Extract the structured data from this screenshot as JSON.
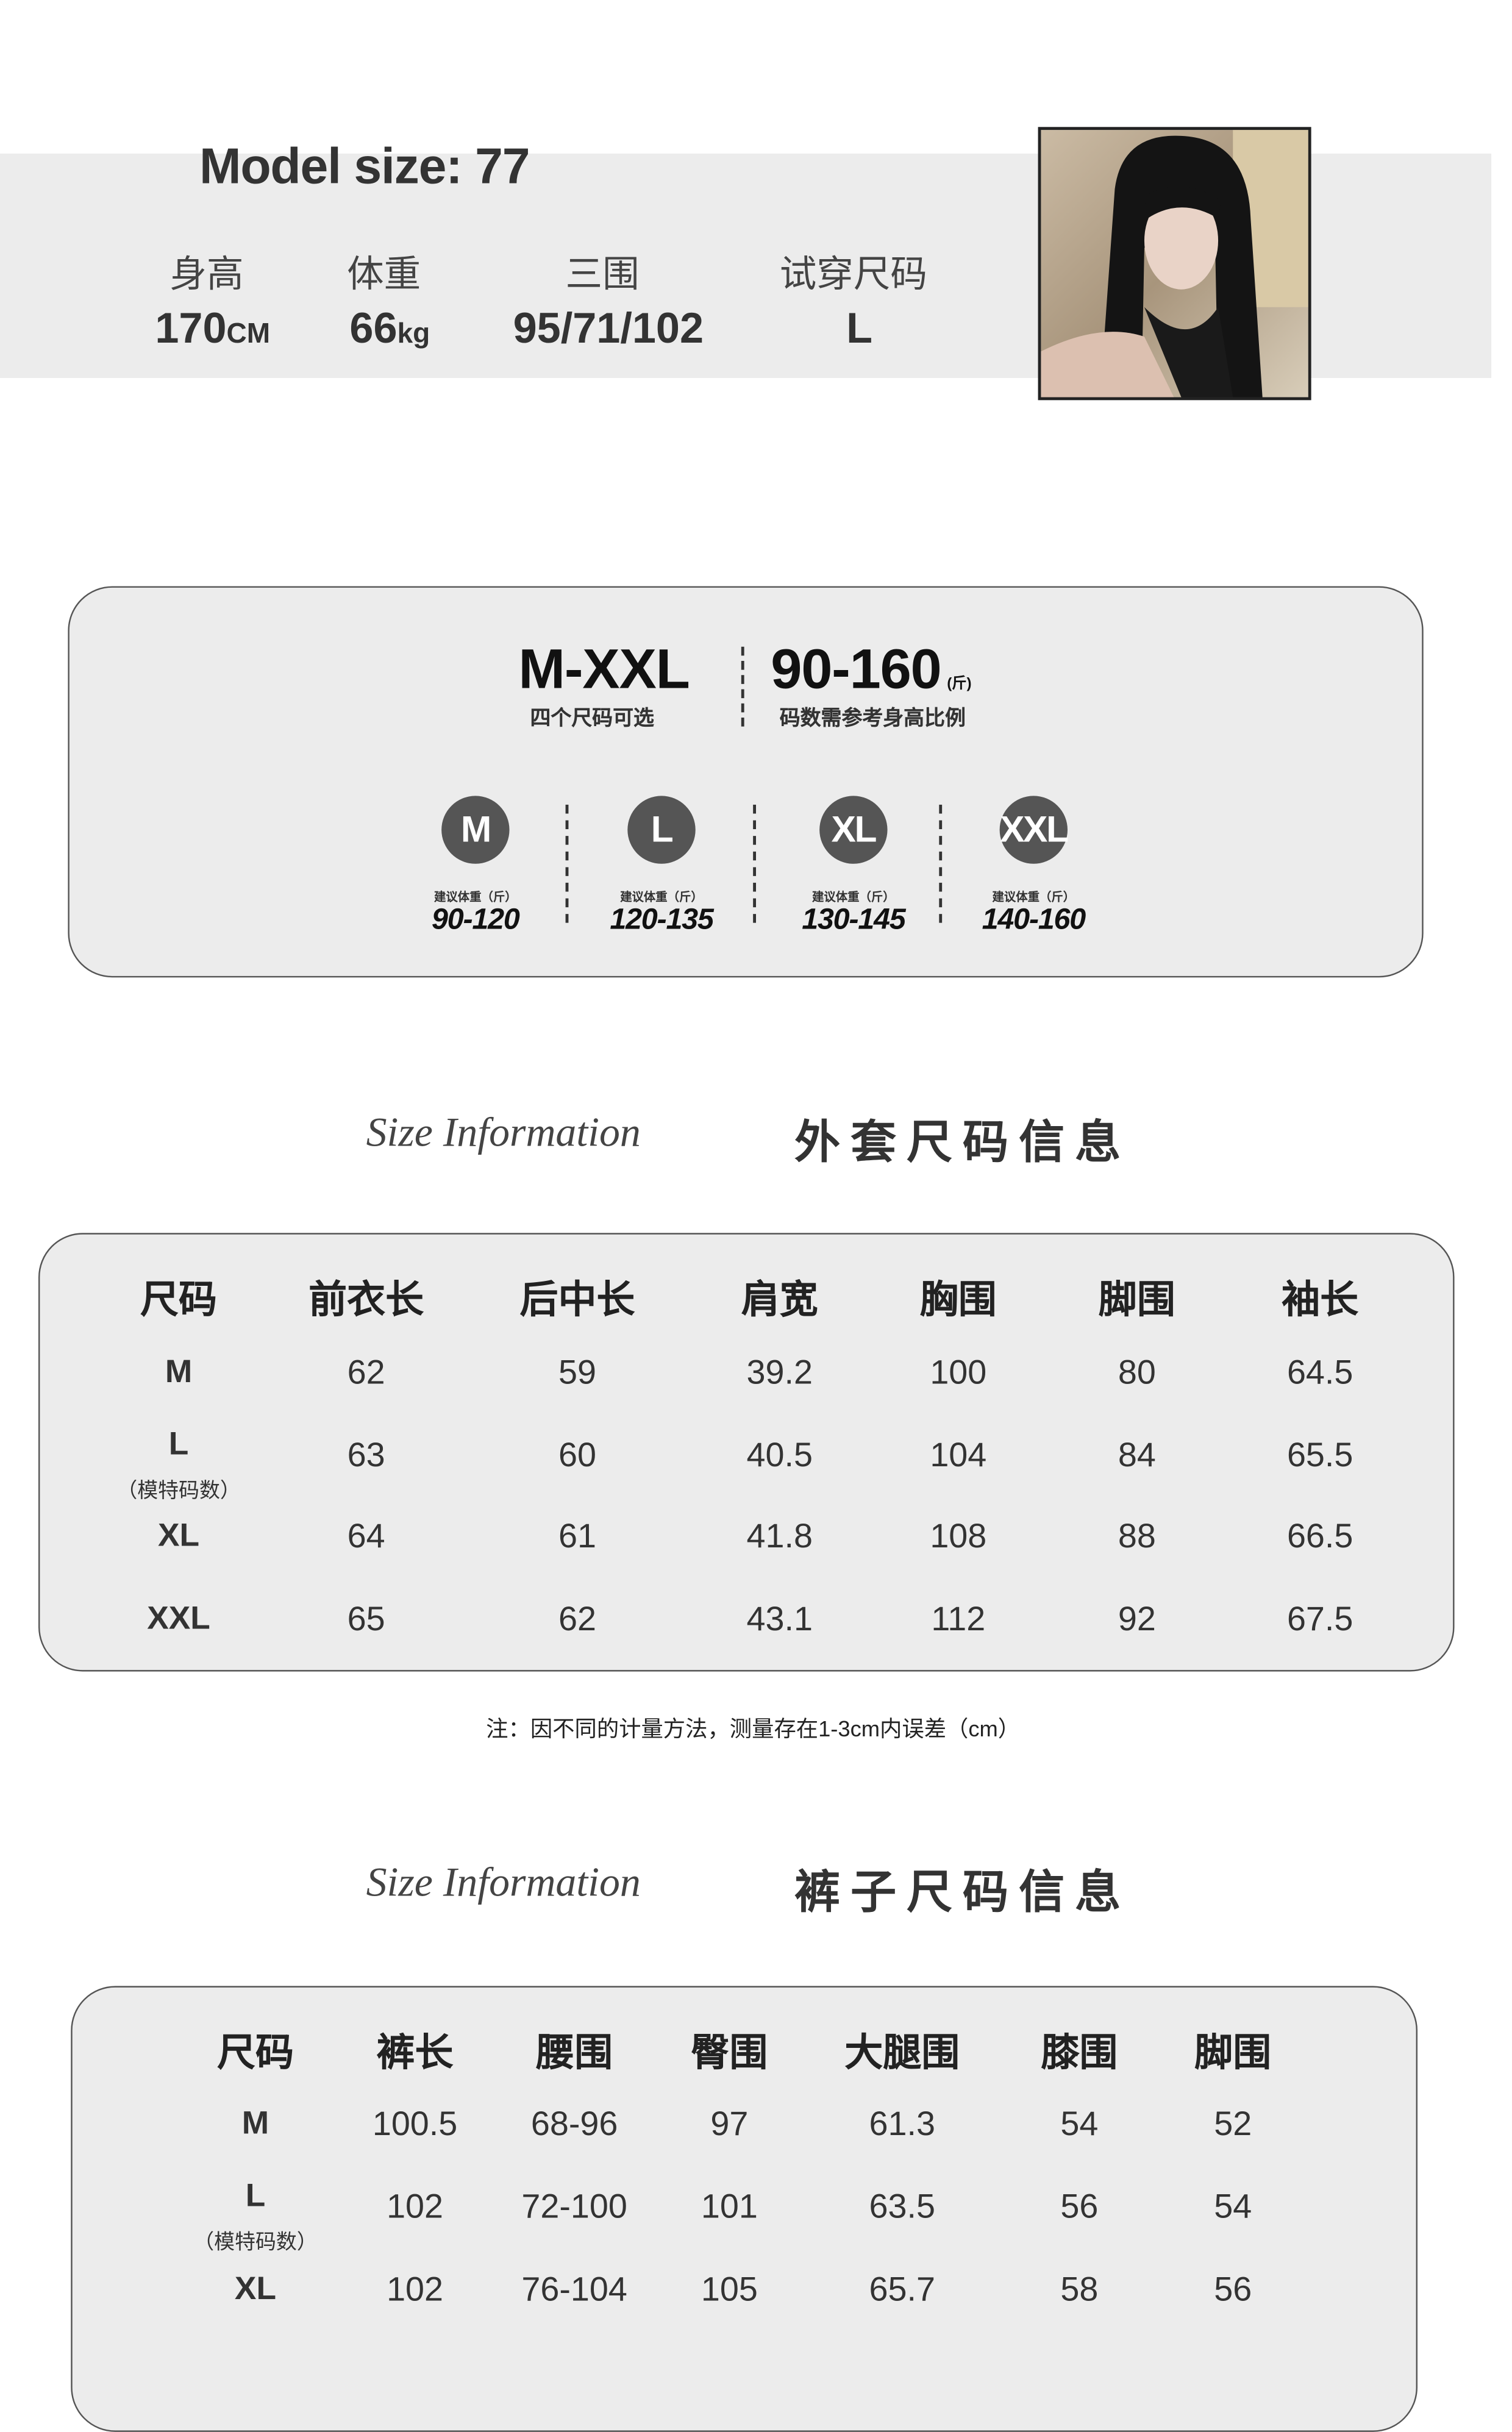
{
  "model": {
    "title": "Model size: 77",
    "labels": [
      "身高",
      "体重",
      "三围",
      "试穿尺码"
    ],
    "values": [
      {
        "num": "170",
        "unit": "CM"
      },
      {
        "num": "66",
        "unit": "kg"
      },
      {
        "num": "95/71/102",
        "unit": ""
      },
      {
        "num": "L",
        "unit": ""
      }
    ]
  },
  "range": {
    "sizes": "M-XXL",
    "sizes_sub": "四个尺码可选",
    "weights": "90-160",
    "weights_unit": "(斤)",
    "weights_sub": "码数需参考身高比例",
    "items": [
      {
        "size": "M",
        "label": "建议体重（斤）",
        "value": "90-120"
      },
      {
        "size": "L",
        "label": "建议体重（斤）",
        "value": "120-135"
      },
      {
        "size": "XL",
        "label": "建议体重（斤）",
        "value": "130-145"
      },
      {
        "size": "XXL",
        "label": "建议体重（斤）",
        "value": "140-160"
      }
    ]
  },
  "coat": {
    "script": "Size Information",
    "title": "外套尺码信息",
    "headers": [
      "尺码",
      "前衣长",
      "后中长",
      "肩宽",
      "胸围",
      "脚围",
      "袖长"
    ],
    "rows": [
      [
        "M",
        "62",
        "59",
        "39.2",
        "100",
        "80",
        "64.5"
      ],
      [
        "L",
        "63",
        "60",
        "40.5",
        "104",
        "84",
        "65.5"
      ],
      [
        "XL",
        "64",
        "61",
        "41.8",
        "108",
        "88",
        "66.5"
      ],
      [
        "XXL",
        "65",
        "62",
        "43.1",
        "112",
        "92",
        "67.5"
      ]
    ],
    "model_note": "（模特码数）"
  },
  "note": "注：因不同的计量方法，测量存在1-3cm内误差（cm）",
  "pants": {
    "script": "Size Information",
    "title": "裤子尺码信息",
    "headers": [
      "尺码",
      "裤长",
      "腰围",
      "臀围",
      "大腿围",
      "膝围",
      "脚围"
    ],
    "rows": [
      [
        "M",
        "100.5",
        "68-96",
        "97",
        "61.3",
        "54",
        "52"
      ],
      [
        "L",
        "102",
        "72-100",
        "101",
        "63.5",
        "56",
        "54"
      ],
      [
        "XL",
        "102",
        "76-104",
        "105",
        "65.7",
        "58",
        "56"
      ]
    ],
    "model_note": "（模特码数）"
  }
}
